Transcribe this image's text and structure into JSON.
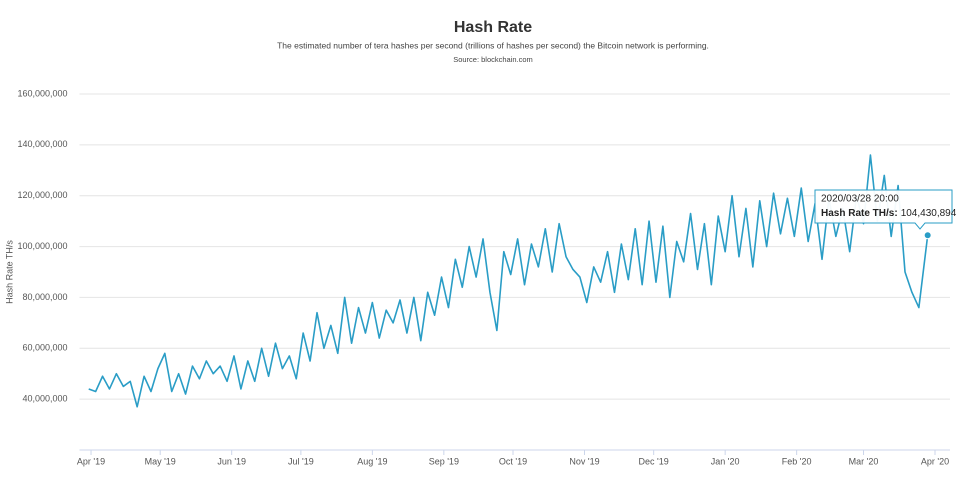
{
  "chart_data": {
    "type": "line",
    "title": "Hash Rate",
    "subtitle": "The estimated number of tera hashes per second (trillions of hashes per second) the Bitcoin network is performing.",
    "source": "Source: blockchain.com",
    "ylabel": "Hash Rate TH/s",
    "color": "#2a9dc6",
    "grid": true,
    "x": [
      -1,
      2,
      5,
      8,
      11,
      14,
      17,
      20,
      23,
      26,
      29,
      32,
      35,
      38,
      41,
      44,
      47,
      50,
      53,
      56,
      59,
      62,
      65,
      68,
      71,
      74,
      77,
      80,
      83,
      86,
      89,
      92,
      95,
      98,
      101,
      104,
      107,
      110,
      113,
      116,
      119,
      122,
      125,
      128,
      131,
      134,
      137,
      140,
      143,
      146,
      149,
      152,
      155,
      158,
      161,
      164,
      167,
      170,
      173,
      176,
      179,
      182,
      185,
      188,
      191,
      194,
      197,
      200,
      203,
      206,
      209,
      212,
      215,
      218,
      221,
      224,
      227,
      230,
      233,
      236,
      239,
      242,
      245,
      248,
      251,
      254,
      257,
      260,
      263,
      266,
      269,
      272,
      275,
      278,
      281,
      284,
      287,
      290,
      293,
      296,
      299,
      302,
      305,
      308,
      311,
      314,
      317,
      320,
      323,
      326,
      329,
      332,
      335,
      338,
      341,
      344,
      347,
      350,
      353,
      356,
      359,
      362.83
    ],
    "values": [
      44000000,
      43000000,
      49000000,
      44000000,
      50000000,
      45000000,
      47000000,
      37000000,
      49000000,
      43000000,
      52000000,
      58000000,
      43000000,
      50000000,
      42000000,
      53000000,
      48000000,
      55000000,
      50000000,
      53000000,
      47000000,
      57000000,
      44000000,
      55000000,
      47000000,
      60000000,
      49000000,
      62000000,
      52000000,
      57000000,
      48000000,
      66000000,
      55000000,
      74000000,
      60000000,
      69000000,
      58000000,
      80000000,
      62000000,
      76000000,
      66000000,
      78000000,
      64000000,
      75000000,
      70000000,
      79000000,
      66000000,
      80000000,
      63000000,
      82000000,
      73000000,
      88000000,
      76000000,
      95000000,
      84000000,
      100000000,
      88000000,
      103000000,
      82000000,
      67000000,
      98000000,
      89000000,
      103000000,
      85000000,
      101000000,
      92000000,
      107000000,
      90000000,
      109000000,
      96000000,
      91000000,
      88000000,
      78000000,
      92000000,
      86000000,
      98000000,
      82000000,
      101000000,
      87000000,
      107000000,
      85000000,
      110000000,
      86000000,
      108000000,
      80000000,
      102000000,
      94000000,
      113000000,
      91000000,
      109000000,
      85000000,
      112000000,
      98000000,
      120000000,
      96000000,
      115000000,
      92000000,
      118000000,
      100000000,
      121000000,
      105000000,
      119000000,
      104000000,
      123000000,
      102000000,
      117000000,
      95000000,
      119000000,
      104000000,
      115000000,
      98000000,
      120000000,
      109000000,
      136000000,
      110000000,
      128000000,
      104000000,
      124000000,
      90000000,
      82000000,
      76000000,
      104430894
    ],
    "xlim": [
      -5,
      366
    ],
    "xticks": [
      {
        "value": 0,
        "label": "Apr '19"
      },
      {
        "value": 30,
        "label": "May '19"
      },
      {
        "value": 61,
        "label": "Jun '19"
      },
      {
        "value": 91,
        "label": "Jul '19"
      },
      {
        "value": 122,
        "label": "Aug '19"
      },
      {
        "value": 153,
        "label": "Sep '19"
      },
      {
        "value": 183,
        "label": "Oct '19"
      },
      {
        "value": 214,
        "label": "Nov '19"
      },
      {
        "value": 244,
        "label": "Dec '19"
      },
      {
        "value": 275,
        "label": "Jan '20"
      },
      {
        "value": 306,
        "label": "Feb '20"
      },
      {
        "value": 335,
        "label": "Mar '20"
      },
      {
        "value": 366,
        "label": "Apr '20"
      }
    ],
    "ylim": [
      20000000,
      160000000
    ],
    "yticks": [
      {
        "value": 40000000,
        "label": "40,000,000"
      },
      {
        "value": 60000000,
        "label": "60,000,000"
      },
      {
        "value": 80000000,
        "label": "80,000,000"
      },
      {
        "value": 100000000,
        "label": "100,000,000"
      },
      {
        "value": 120000000,
        "label": "120,000,000"
      },
      {
        "value": 140000000,
        "label": "140,000,000"
      },
      {
        "value": 160000000,
        "label": "160,000,000"
      }
    ],
    "tooltip": {
      "title": "2020/03/28 20:00",
      "series_label": "Hash Rate TH/s:",
      "value_label": "104,430,894"
    }
  }
}
